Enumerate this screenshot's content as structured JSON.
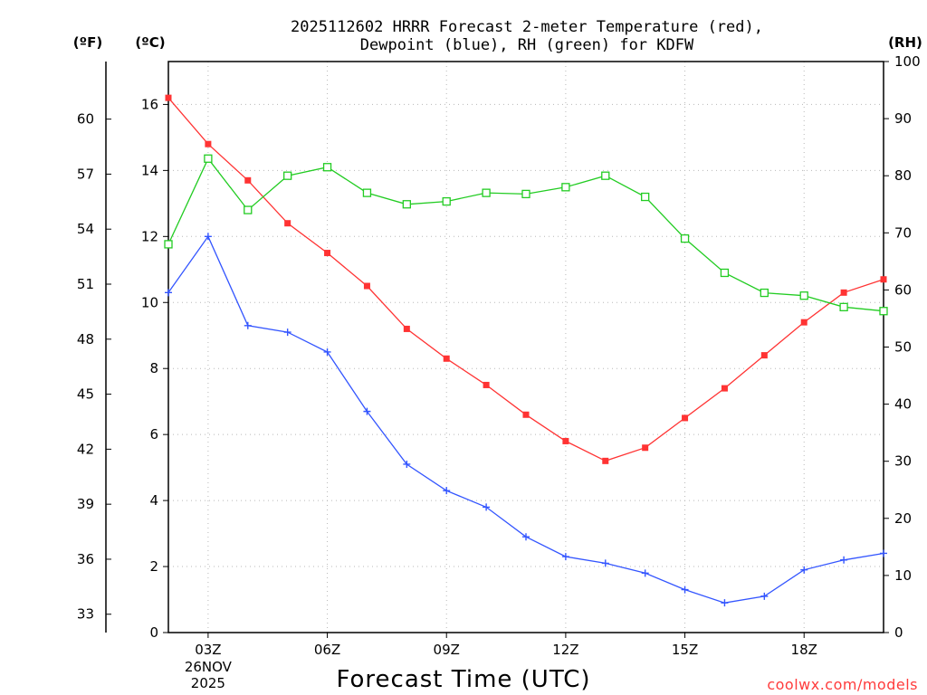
{
  "chart_data": {
    "type": "line",
    "title": "2025112602 HRRR Forecast 2-meter Temperature (red),",
    "subtitle": "Dewpoint (blue), RH (green) for KDFW",
    "xlabel": "Forecast Time (UTC)",
    "credit": "coolwx.com/models",
    "units": {
      "fahrenheit": "(ºF)",
      "celsius": "(ºC)",
      "rh": "(RH)"
    },
    "x": [
      2,
      3,
      4,
      5,
      6,
      7,
      8,
      9,
      10,
      11,
      12,
      13,
      14,
      15,
      16,
      17,
      18,
      19,
      20
    ],
    "xlim": [
      2,
      20
    ],
    "x_ticks": [
      {
        "x": 3,
        "label": "03Z",
        "sub1": "26NOV",
        "sub2": "2025"
      },
      {
        "x": 6,
        "label": "06Z",
        "sub1": "",
        "sub2": ""
      },
      {
        "x": 9,
        "label": "09Z",
        "sub1": "",
        "sub2": ""
      },
      {
        "x": 12,
        "label": "12Z",
        "sub1": "",
        "sub2": ""
      },
      {
        "x": 15,
        "label": "15Z",
        "sub1": "",
        "sub2": ""
      },
      {
        "x": 18,
        "label": "18Z",
        "sub1": "",
        "sub2": ""
      }
    ],
    "celsius_ticks": [
      "0",
      "2",
      "4",
      "6",
      "8",
      "10",
      "12",
      "14",
      "16"
    ],
    "fahrenheit_ticks": [
      "33",
      "36",
      "39",
      "42",
      "45",
      "48",
      "51",
      "54",
      "57",
      "60"
    ],
    "rh_ticks": [
      "0",
      "10",
      "20",
      "30",
      "40",
      "50",
      "60",
      "70",
      "80",
      "90",
      "100"
    ],
    "ylim_celsius": [
      0,
      17.3
    ],
    "ylim_rh": [
      0,
      100
    ],
    "series": [
      {
        "name": "2-meter Temperature",
        "axis": "celsius",
        "color": "#ff3333",
        "marker": "filled-square",
        "values": [
          16.2,
          14.8,
          13.7,
          12.4,
          11.5,
          10.5,
          9.2,
          8.3,
          7.5,
          6.6,
          5.8,
          5.2,
          5.6,
          6.5,
          7.4,
          8.4,
          9.4,
          10.3,
          10.7
        ]
      },
      {
        "name": "Dewpoint",
        "axis": "celsius",
        "color": "#3355ff",
        "marker": "plus",
        "values": [
          10.3,
          12.0,
          9.3,
          9.1,
          8.5,
          6.7,
          5.1,
          4.3,
          3.8,
          2.9,
          2.3,
          2.1,
          1.8,
          1.3,
          0.9,
          1.1,
          1.9,
          2.2,
          2.4
        ]
      },
      {
        "name": "RH",
        "axis": "rh",
        "color": "#22cc22",
        "marker": "open-square",
        "values": [
          68,
          83,
          74,
          80,
          81.5,
          77,
          75,
          75.5,
          77,
          76.8,
          78,
          80,
          76.3,
          69,
          63,
          59.5,
          59,
          57,
          56.3
        ]
      }
    ]
  }
}
